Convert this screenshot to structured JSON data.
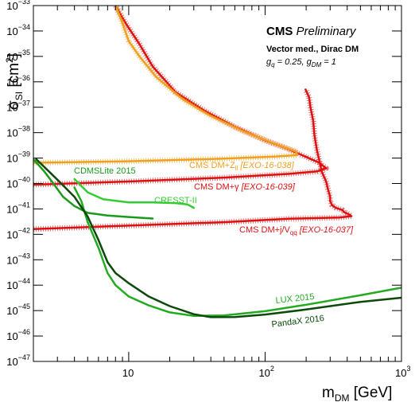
{
  "chart_data": {
    "type": "line",
    "title": "CMS Preliminary",
    "subtitle": "Vector med., Dirac DM",
    "couplings": {
      "gq": "0.25",
      "gDM": "1"
    },
    "xlabel": "m_DM [GeV]",
    "ylabel": "σ_SI [cm²]",
    "x_scale": "log",
    "y_scale": "log",
    "xlim": [
      2,
      1000
    ],
    "ylim": [
      1e-47,
      1e-33
    ],
    "x_ticks": [
      {
        "value": 10,
        "base": "10",
        "exp": ""
      },
      {
        "value": 100,
        "base": "10",
        "exp": "2"
      },
      {
        "value": 1000,
        "base": "10",
        "exp": "3"
      }
    ],
    "y_ticks": [
      {
        "value": 1e-47,
        "base": "10",
        "exp": "−47"
      },
      {
        "value": 1e-46,
        "base": "10",
        "exp": "−46"
      },
      {
        "value": 1e-45,
        "base": "10",
        "exp": "−45"
      },
      {
        "value": 1e-44,
        "base": "10",
        "exp": "−44"
      },
      {
        "value": 1e-43,
        "base": "10",
        "exp": "−43"
      },
      {
        "value": 1e-42,
        "base": "10",
        "exp": "−42"
      },
      {
        "value": 1e-41,
        "base": "10",
        "exp": "−41"
      },
      {
        "value": 1e-40,
        "base": "10",
        "exp": "−40"
      },
      {
        "value": 1e-39,
        "base": "10",
        "exp": "−39"
      },
      {
        "value": 1e-38,
        "base": "10",
        "exp": "−38"
      },
      {
        "value": 1e-37,
        "base": "10",
        "exp": "−37"
      },
      {
        "value": 1e-36,
        "base": "10",
        "exp": "−36"
      },
      {
        "value": 1e-35,
        "base": "10",
        "exp": "−35"
      },
      {
        "value": 1e-34,
        "base": "10",
        "exp": "−34"
      },
      {
        "value": 1e-33,
        "base": "10",
        "exp": "−33"
      }
    ],
    "grid": false,
    "series": [
      {
        "name": "CMS DM+j/V_qq [EXO-16-037]",
        "label_main": "CMS DM+j/V",
        "label_sub": "qq",
        "label_ref": "[EXO-16-037]",
        "color": "#dd1111",
        "dotted_band": true,
        "points": [
          [
            2,
            1.6e-42
          ],
          [
            10,
            2.2e-42
          ],
          [
            50,
            3e-42
          ],
          [
            150,
            4.1e-42
          ],
          [
            350,
            4.6e-42
          ],
          [
            430,
            5.2e-42
          ],
          [
            410,
            6.2e-42
          ],
          [
            380,
            7.4e-42
          ],
          [
            370,
            9e-42
          ],
          [
            330,
            1.1e-41
          ],
          [
            310,
            1.4e-41
          ],
          [
            300,
            2e-41
          ],
          [
            300,
            3e-41
          ],
          [
            290,
            5.5e-41
          ],
          [
            280,
            1.2e-40
          ],
          [
            260,
            3e-40
          ],
          [
            250,
            8e-40
          ],
          [
            240,
            2e-39
          ],
          [
            230,
            8e-39
          ],
          [
            225,
            3e-38
          ],
          [
            215,
            1e-37
          ],
          [
            210,
            2.5e-37
          ],
          [
            198,
            5e-37
          ]
        ]
      },
      {
        "name": "CMS DM+γ [EXO-16-039]",
        "label_main": "CMS DM+γ",
        "label_sub": "",
        "label_ref": "[EXO-16-039]",
        "color": "#dd1111",
        "dotted_band": true,
        "points": [
          [
            2,
            9e-41
          ],
          [
            10,
            1.2e-40
          ],
          [
            50,
            1.7e-40
          ],
          [
            150,
            2.4e-40
          ],
          [
            240,
            3e-40
          ],
          [
            280,
            4e-40
          ],
          [
            250,
            6.5e-40
          ],
          [
            200,
            1.1e-39
          ],
          [
            150,
            2.2e-39
          ],
          [
            100,
            5e-39
          ],
          [
            60,
            1.7e-38
          ],
          [
            35,
            8e-38
          ],
          [
            22,
            4e-37
          ],
          [
            15,
            4e-36
          ],
          [
            12,
            3e-35
          ],
          [
            9.5,
            2e-34
          ],
          [
            8.0,
            1e-33
          ]
        ]
      },
      {
        "name": "CMS DM+Z_ll [EXO-16-038]",
        "label_main": "CMS DM+Z",
        "label_sub": "ll",
        "label_ref": "[EXO-16-038]",
        "color": "#f0a020",
        "dotted_band": true,
        "points": [
          [
            2,
            6.5e-40
          ],
          [
            10,
            7.5e-40
          ],
          [
            50,
            9.5e-40
          ],
          [
            120,
            1.15e-39
          ],
          [
            170,
            1.3e-39
          ],
          [
            170,
            1.8e-39
          ],
          [
            120,
            3.5e-39
          ],
          [
            70,
            1.1e-38
          ],
          [
            40,
            4.5e-38
          ],
          [
            25,
            2e-37
          ],
          [
            16,
            1.5e-36
          ],
          [
            12,
            1e-35
          ],
          [
            10,
            4e-35
          ],
          [
            9,
            2e-34
          ],
          [
            8,
            1e-33
          ]
        ]
      },
      {
        "name": "CDMSLite 2015",
        "label_main": "CDMSLite 2015",
        "label_sub": "",
        "label_ref": "",
        "color": "#1a9a1a",
        "dotted_band": false,
        "points": [
          [
            2,
            9e-40
          ],
          [
            2.4,
            3e-40
          ],
          [
            2.8,
            1e-40
          ],
          [
            3.3,
            3e-41
          ],
          [
            4,
            1.3e-41
          ],
          [
            5,
            7e-42
          ],
          [
            7,
            5.5e-42
          ],
          [
            10,
            4.8e-42
          ],
          [
            15,
            4.2e-42
          ]
        ]
      },
      {
        "name": "CRESST-II",
        "label_main": "CRESST-II",
        "label_sub": "",
        "label_ref": "",
        "color": "#33cc33",
        "dotted_band": false,
        "points": [
          [
            4,
            1.5e-40
          ],
          [
            5,
            4.5e-41
          ],
          [
            6.5,
            2.4e-41
          ],
          [
            10,
            1.8e-41
          ],
          [
            15,
            1.8e-41
          ],
          [
            22,
            1.7e-41
          ],
          [
            27,
            1.5e-41
          ],
          [
            30,
            1.1e-41
          ]
        ]
      },
      {
        "name": "LUX 2015",
        "label_main": "LUX 2015",
        "label_sub": "",
        "label_ref": "",
        "color": "#22aa22",
        "dotted_band": false,
        "points": [
          [
            4,
            7e-41
          ],
          [
            4.5,
            2e-41
          ],
          [
            5,
            3e-42
          ],
          [
            6,
            3e-43
          ],
          [
            7,
            3e-44
          ],
          [
            8,
            1e-44
          ],
          [
            10,
            3.6e-45
          ],
          [
            14,
            1.6e-45
          ],
          [
            20,
            8.5e-46
          ],
          [
            30,
            6.2e-46
          ],
          [
            50,
            6.4e-46
          ],
          [
            100,
            9.5e-46
          ],
          [
            200,
            1.7e-45
          ],
          [
            500,
            4e-45
          ],
          [
            1000,
            8e-45
          ]
        ]
      },
      {
        "name": "PandaX 2016",
        "label_main": "PandaX 2016",
        "label_sub": "",
        "label_ref": "",
        "color": "#0b4a0b",
        "dotted_band": false,
        "points": [
          [
            2.1,
            9e-40
          ],
          [
            2.6,
            3e-40
          ],
          [
            3.2,
            1e-40
          ],
          [
            4,
            3e-41
          ],
          [
            5,
            5e-42
          ],
          [
            6,
            6e-43
          ],
          [
            7,
            8e-44
          ],
          [
            8,
            3e-44
          ],
          [
            10,
            1.2e-44
          ],
          [
            14,
            3.6e-45
          ],
          [
            20,
            1.5e-45
          ],
          [
            30,
            7.2e-46
          ],
          [
            40,
            5.5e-46
          ],
          [
            60,
            5.6e-46
          ],
          [
            100,
            7e-46
          ],
          [
            200,
            1.1e-45
          ],
          [
            500,
            2.2e-45
          ],
          [
            1000,
            3.2e-45
          ]
        ]
      }
    ]
  }
}
